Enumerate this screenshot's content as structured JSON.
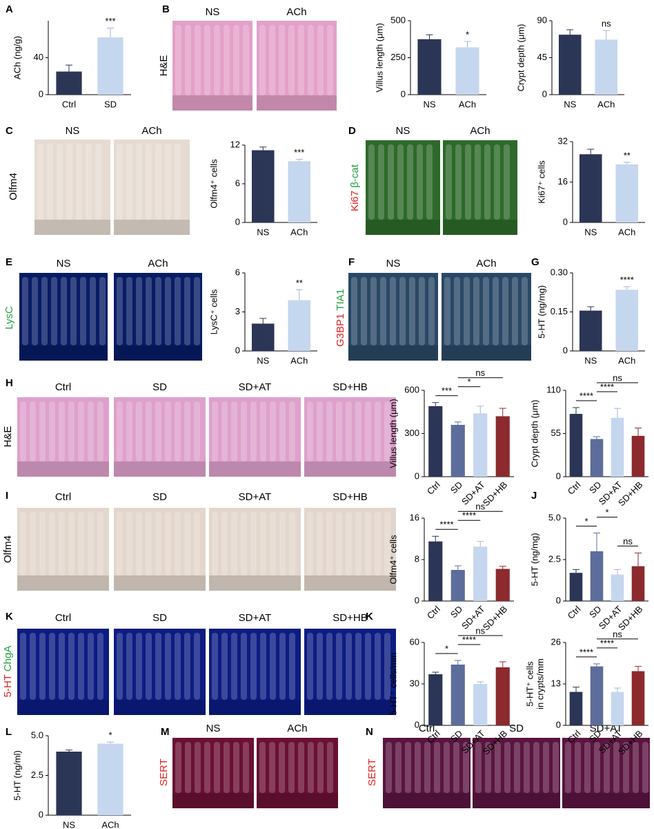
{
  "chart_data": [
    {
      "type": "bar",
      "letter": "A",
      "ylabel": "ACh (ng/g)",
      "categories": [
        "Ctrl",
        "SD"
      ],
      "values": [
        25,
        62
      ],
      "errors": [
        7,
        10
      ],
      "colors": [
        "#2b3556",
        "#c5d7ee"
      ],
      "ylim": [
        0,
        80
      ],
      "yticks": [
        0,
        40
      ],
      "annotations": [
        {
          "text": "***",
          "above": "SD"
        }
      ]
    },
    {
      "type": "bar",
      "ylabel": "Villus length (μm)",
      "categories": [
        "NS",
        "ACh"
      ],
      "values": [
        375,
        320
      ],
      "errors": [
        30,
        40
      ],
      "colors": [
        "#2b3556",
        "#c5d7ee"
      ],
      "ylim": [
        0,
        500
      ],
      "yticks": [
        0,
        250,
        500
      ],
      "annotations": [
        {
          "text": "*",
          "above": "ACh"
        }
      ]
    },
    {
      "type": "bar",
      "ylabel": "Crypt depth (μm)",
      "categories": [
        "NS",
        "ACh"
      ],
      "values": [
        73,
        67
      ],
      "errors": [
        6,
        11
      ],
      "colors": [
        "#2b3556",
        "#c5d7ee"
      ],
      "ylim": [
        0,
        90
      ],
      "yticks": [
        0,
        45,
        90
      ],
      "annotations": [
        {
          "text": "ns",
          "above": "ACh"
        }
      ]
    },
    {
      "type": "bar",
      "ylabel": "Olfm4⁺ cells",
      "categories": [
        "NS",
        "ACh"
      ],
      "values": [
        11.2,
        9.5
      ],
      "errors": [
        0.5,
        0.3
      ],
      "colors": [
        "#2b3556",
        "#c5d7ee"
      ],
      "ylim": [
        0,
        12
      ],
      "yticks": [
        0,
        6,
        12
      ],
      "annotations": [
        {
          "text": "***",
          "above": "ACh"
        }
      ]
    },
    {
      "type": "bar",
      "ylabel": "Ki67⁺ cells",
      "categories": [
        "NS",
        "ACh"
      ],
      "values": [
        27,
        23
      ],
      "errors": [
        2,
        0.8
      ],
      "colors": [
        "#2b3556",
        "#c5d7ee"
      ],
      "ylim": [
        0,
        32
      ],
      "yticks": [
        0,
        16,
        32
      ],
      "annotations": [
        {
          "text": "**",
          "above": "ACh"
        }
      ]
    },
    {
      "type": "bar",
      "ylabel": "LysC⁺ cells",
      "categories": [
        "NS",
        "ACh"
      ],
      "values": [
        2.1,
        3.9
      ],
      "errors": [
        0.4,
        0.8
      ],
      "colors": [
        "#2b3556",
        "#c5d7ee"
      ],
      "ylim": [
        0,
        6
      ],
      "yticks": [
        0,
        3,
        6
      ],
      "annotations": [
        {
          "text": "**",
          "above": "ACh"
        }
      ]
    },
    {
      "type": "bar",
      "letter": "G",
      "ylabel": "5-HT (ng/mg)",
      "categories": [
        "NS",
        "ACh"
      ],
      "values": [
        0.155,
        0.235
      ],
      "errors": [
        0.015,
        0.012
      ],
      "colors": [
        "#2b3556",
        "#c5d7ee"
      ],
      "ylim": [
        0,
        0.3
      ],
      "yticks": [
        0,
        {
          "value": 0.15,
          "label": "0.15"
        },
        {
          "value": 0.3,
          "label": "0.30"
        }
      ],
      "annotations": [
        {
          "text": "****",
          "above": "ACh"
        }
      ]
    },
    {
      "type": "bar",
      "letter": "H",
      "ylabel": "Villus length (μm)",
      "categories": [
        "Ctrl",
        "SD",
        "SD+AT",
        "SD+HB"
      ],
      "values": [
        490,
        360,
        440,
        420
      ],
      "errors": [
        25,
        20,
        50,
        55
      ],
      "colors": [
        "#2b3556",
        "#5c6d9c",
        "#c5d7ee",
        "#8c2a2e"
      ],
      "ylim": [
        0,
        600
      ],
      "yticks": [
        0,
        300,
        600
      ],
      "annotations": [
        {
          "text": "***",
          "between": [
            "Ctrl",
            "SD"
          ]
        },
        {
          "text": "*",
          "between": [
            "SD",
            "SD+AT"
          ]
        },
        {
          "text": "ns",
          "between": [
            "SD",
            "SD+HB"
          ]
        }
      ]
    },
    {
      "type": "bar",
      "ylabel": "Crypt depth (μm)",
      "categories": [
        "Ctrl",
        "SD",
        "SD+AT",
        "SD+HB"
      ],
      "values": [
        80,
        48,
        75,
        52
      ],
      "errors": [
        8,
        3,
        12,
        10
      ],
      "colors": [
        "#2b3556",
        "#5c6d9c",
        "#c5d7ee",
        "#8c2a2e"
      ],
      "ylim": [
        0,
        110
      ],
      "yticks": [
        0,
        55,
        110
      ],
      "annotations": [
        {
          "text": "****",
          "between": [
            "Ctrl",
            "SD"
          ]
        },
        {
          "text": "****",
          "between": [
            "SD",
            "SD+AT"
          ]
        },
        {
          "text": "ns",
          "between": [
            "SD",
            "SD+HB"
          ]
        }
      ]
    },
    {
      "type": "bar",
      "ylabel": "Olfm4⁺ cells",
      "categories": [
        "Ctrl",
        "SD",
        "SD+AT",
        "SD+HB"
      ],
      "values": [
        11.5,
        6,
        10.5,
        6.2
      ],
      "errors": [
        1,
        0.8,
        1,
        0.5
      ],
      "colors": [
        "#2b3556",
        "#5c6d9c",
        "#c5d7ee",
        "#8c2a2e"
      ],
      "ylim": [
        0,
        16
      ],
      "yticks": [
        0,
        8,
        16
      ],
      "annotations": [
        {
          "text": "****",
          "between": [
            "Ctrl",
            "SD"
          ]
        },
        {
          "text": "****",
          "between": [
            "SD",
            "SD+AT"
          ]
        },
        {
          "text": "ns",
          "between": [
            "SD",
            "SD+HB"
          ]
        }
      ]
    },
    {
      "type": "bar",
      "letter": "J",
      "ylabel": "5-HT (ng/mg)",
      "categories": [
        "Ctrl",
        "SD",
        "SD+AT",
        "SD+HB"
      ],
      "values": [
        1.7,
        3.0,
        1.6,
        2.1
      ],
      "errors": [
        0.2,
        1.1,
        0.3,
        0.8
      ],
      "colors": [
        "#2b3556",
        "#5c6d9c",
        "#c5d7ee",
        "#8c2a2e"
      ],
      "ylim": [
        0,
        5
      ],
      "yticks": [
        0,
        2.5,
        {
          "value": 5,
          "label": "5.0"
        }
      ],
      "annotations": [
        {
          "text": "*",
          "between": [
            "Ctrl",
            "SD"
          ]
        },
        {
          "text": "ns",
          "between": [
            "SD+AT",
            "SD+HB"
          ]
        },
        {
          "text": "*",
          "between": [
            "SD",
            "SD+AT"
          ]
        }
      ]
    },
    {
      "type": "bar",
      "letter": "K",
      "ylabel": "5-HT⁺ cells/mm",
      "categories": [
        "Ctrl",
        "SD",
        "SD+AT",
        "SD+HB"
      ],
      "values": [
        37,
        44,
        30,
        42
      ],
      "errors": [
        1.5,
        3,
        1.5,
        4
      ],
      "colors": [
        "#2b3556",
        "#5c6d9c",
        "#c5d7ee",
        "#8c2a2e"
      ],
      "ylim": [
        0,
        60
      ],
      "yticks": [
        0,
        30,
        60
      ],
      "annotations": [
        {
          "text": "*",
          "between": [
            "Ctrl",
            "SD"
          ]
        },
        {
          "text": "****",
          "between": [
            "SD",
            "SD+AT"
          ]
        },
        {
          "text": "ns",
          "between": [
            "SD",
            "SD+HB"
          ]
        }
      ]
    },
    {
      "type": "bar",
      "ylabel": [
        "5-HT⁺ cells",
        "in crypts/mm"
      ],
      "categories": [
        "Ctrl",
        "SD",
        "SD+AT",
        "SD+HB"
      ],
      "values": [
        10.5,
        18.5,
        10.5,
        17
      ],
      "errors": [
        1.5,
        0.8,
        1.2,
        1.5
      ],
      "colors": [
        "#2b3556",
        "#5c6d9c",
        "#c5d7ee",
        "#8c2a2e"
      ],
      "ylim": [
        0,
        26
      ],
      "yticks": [
        0,
        13,
        26
      ],
      "annotations": [
        {
          "text": "****",
          "between": [
            "Ctrl",
            "SD"
          ]
        },
        {
          "text": "****",
          "between": [
            "SD",
            "SD+AT"
          ]
        },
        {
          "text": "ns",
          "between": [
            "SD",
            "SD+HB"
          ]
        }
      ]
    },
    {
      "type": "bar",
      "letter": "L",
      "ylabel": "5-HT (ng/ml)",
      "categories": [
        "NS",
        "ACh"
      ],
      "values": [
        4.0,
        4.5
      ],
      "errors": [
        0.1,
        0.1
      ],
      "colors": [
        "#2b3556",
        "#c5d7ee"
      ],
      "ylim": [
        0,
        5
      ],
      "yticks": [
        0,
        2.5,
        {
          "value": 5,
          "label": "5.0"
        }
      ],
      "annotations": [
        {
          "text": "*",
          "above": "ACh"
        }
      ]
    }
  ],
  "images": [
    {
      "letter": "B",
      "columns": [
        "NS",
        "ACh"
      ],
      "row_label": [
        {
          "text": "H&E",
          "color": "#000000"
        }
      ],
      "color": "#e4a0c8"
    },
    {
      "letter": "C",
      "columns": [
        "NS",
        "ACh"
      ],
      "row_label": [
        {
          "text": "Olfm4",
          "color": "#000000"
        }
      ],
      "color": "#e6dbd2"
    },
    {
      "letter": "D",
      "columns": [
        "NS",
        "ACh"
      ],
      "row_label": [
        {
          "text": "Ki67",
          "color": "#e02020"
        },
        {
          "text": " β-cat",
          "color": "#20a040"
        }
      ],
      "color": "#2d6a2a"
    },
    {
      "letter": "E",
      "columns": [
        "NS",
        "ACh"
      ],
      "row_label": [
        {
          "text": "LysC",
          "color": "#20a040"
        }
      ],
      "color": "#081c66"
    },
    {
      "letter": "F",
      "columns": [
        "NS",
        "ACh"
      ],
      "row_label": [
        {
          "text": "G3BP1",
          "color": "#e02020"
        },
        {
          "text": " TIA1",
          "color": "#20a040"
        }
      ],
      "color": "#2a4866"
    },
    {
      "letter": "H",
      "columns": [
        "Ctrl",
        "SD",
        "SD+AT",
        "SD+HB"
      ],
      "row_label": [
        {
          "text": "H&E",
          "color": "#000000"
        }
      ],
      "color": "#dea0cc"
    },
    {
      "letter": "I",
      "columns": [
        "Ctrl",
        "SD",
        "SD+AT",
        "SD+HB"
      ],
      "row_label": [
        {
          "text": "Olfm4",
          "color": "#000000"
        }
      ],
      "color": "#e3d6cc"
    },
    {
      "letter": "K",
      "columns": [
        "Ctrl",
        "SD",
        "SD+AT",
        "SD+HB"
      ],
      "row_label": [
        {
          "text": "5-HT",
          "color": "#e02020"
        },
        {
          "text": " ChgA",
          "color": "#20a040"
        }
      ],
      "color": "#0c1c82"
    },
    {
      "letter": "M",
      "columns": [
        "NS",
        "ACh"
      ],
      "row_label": [
        {
          "text": "SERT",
          "color": "#e02020"
        }
      ],
      "color": "#6a1034"
    },
    {
      "letter": "N",
      "columns": [
        "Ctrl",
        "SD",
        "SD+AT"
      ],
      "row_label": [
        {
          "text": "SERT",
          "color": "#e02020"
        }
      ],
      "color": "#5a1440"
    }
  ]
}
